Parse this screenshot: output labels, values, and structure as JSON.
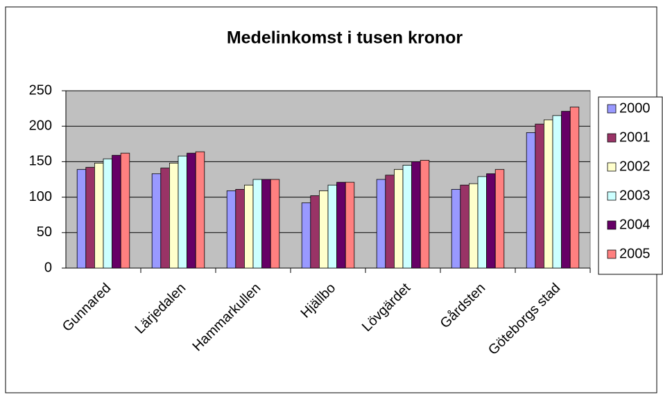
{
  "chart_data": {
    "type": "bar",
    "title": "Medelinkomst i tusen kronor",
    "categories": [
      "Gunnared",
      "Lärjedalen",
      "Hammarkullen",
      "Hjällbo",
      "Lövgärdet",
      "Gårdsten",
      "Göteborgs stad"
    ],
    "series": [
      {
        "name": "2000",
        "color": "#9999ff",
        "values": [
          139,
          133,
          109,
          92,
          125,
          111,
          191
        ]
      },
      {
        "name": "2001",
        "color": "#993366",
        "values": [
          142,
          141,
          111,
          102,
          131,
          117,
          203
        ]
      },
      {
        "name": "2002",
        "color": "#ffffcc",
        "values": [
          148,
          148,
          117,
          109,
          139,
          119,
          209
        ]
      },
      {
        "name": "2003",
        "color": "#ccffff",
        "values": [
          154,
          158,
          125,
          117,
          145,
          129,
          215
        ]
      },
      {
        "name": "2004",
        "color": "#660066",
        "values": [
          159,
          162,
          125,
          121,
          150,
          133,
          221
        ]
      },
      {
        "name": "2005",
        "color": "#ff8080",
        "values": [
          162,
          164,
          125,
          121,
          152,
          139,
          227
        ]
      }
    ],
    "ylim": [
      0,
      250
    ],
    "yticks": [
      0,
      50,
      100,
      150,
      200,
      250
    ],
    "grid": true,
    "legend": "right"
  }
}
